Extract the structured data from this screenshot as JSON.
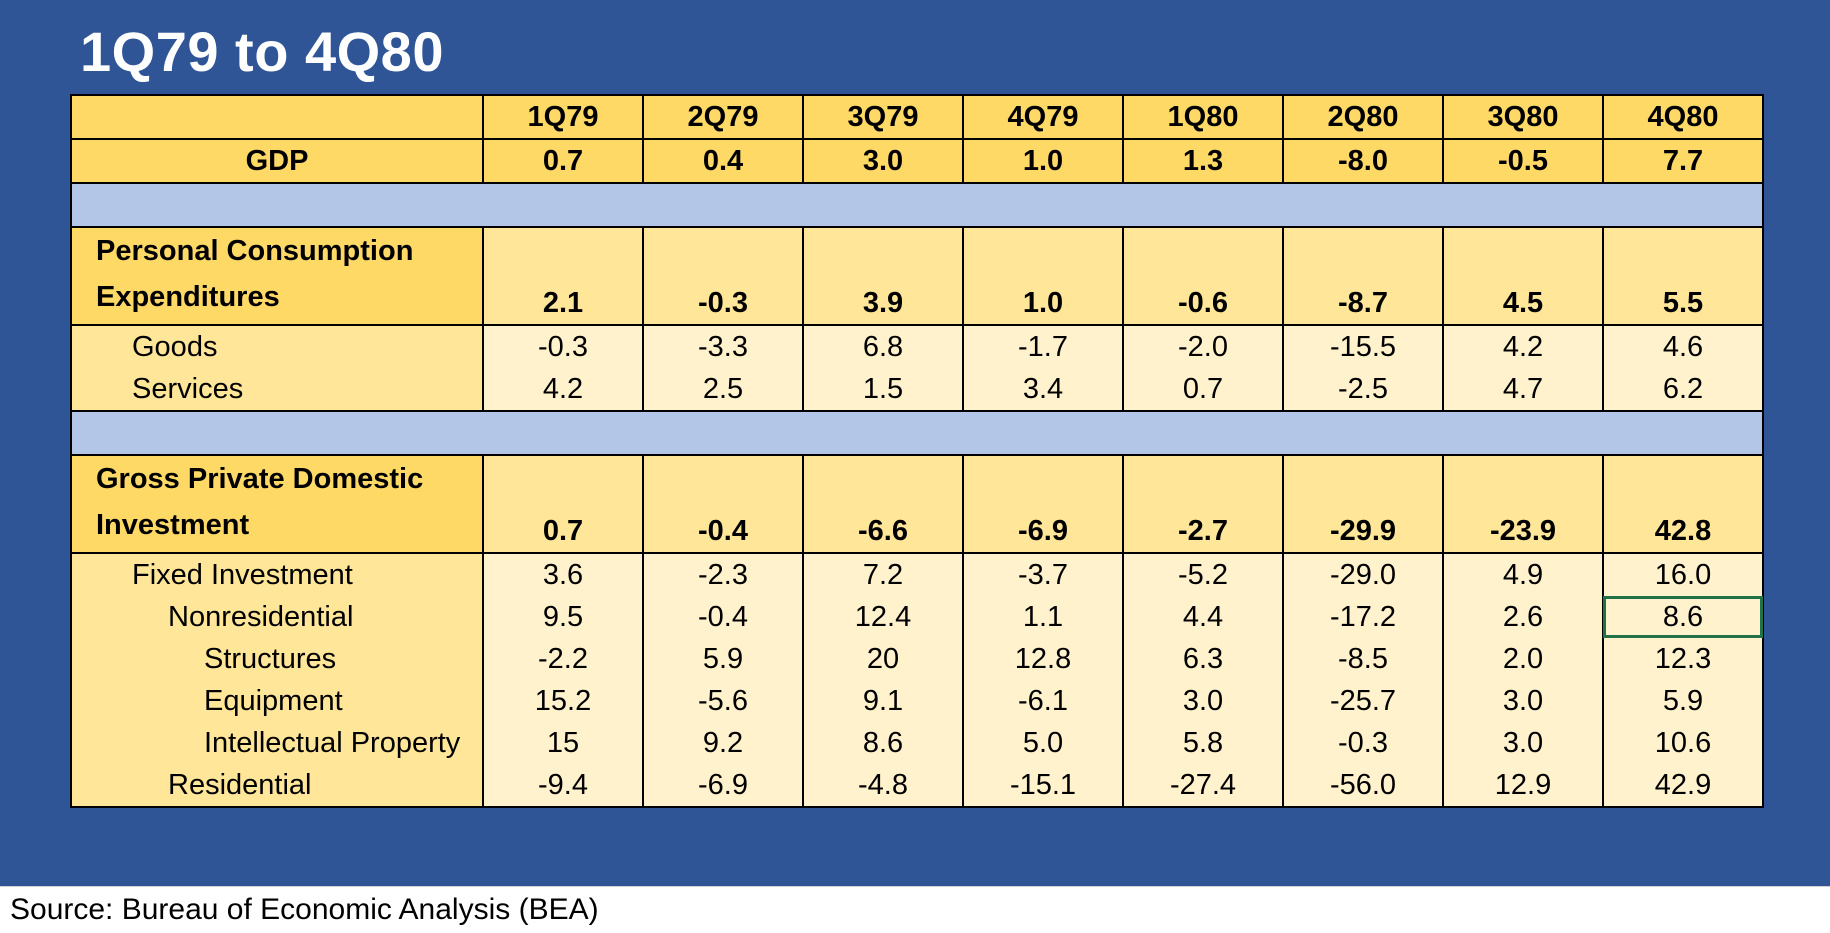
{
  "title": "1Q79 to 4Q80",
  "quarters": [
    "1Q79",
    "2Q79",
    "3Q79",
    "4Q79",
    "1Q80",
    "2Q80",
    "3Q80",
    "4Q80"
  ],
  "gdp": {
    "label": "GDP",
    "values": [
      "0.7",
      "0.4",
      "3.0",
      "1.0",
      "1.3",
      "-8.0",
      "-0.5",
      "7.7"
    ]
  },
  "pce": {
    "label": "Personal Consumption Expenditures",
    "values": [
      "2.1",
      "-0.3",
      "3.9",
      "1.0",
      "-0.6",
      "-8.7",
      "4.5",
      "5.5"
    ],
    "rows": [
      {
        "label": "Goods",
        "indent": 1,
        "values": [
          "-0.3",
          "-3.3",
          "6.8",
          "-1.7",
          "-2.0",
          "-15.5",
          "4.2",
          "4.6"
        ]
      },
      {
        "label": "Services",
        "indent": 1,
        "values": [
          "4.2",
          "2.5",
          "1.5",
          "3.4",
          "0.7",
          "-2.5",
          "4.7",
          "6.2"
        ]
      }
    ]
  },
  "gpdi": {
    "label": "Gross Private Domestic Investment",
    "values": [
      "0.7",
      "-0.4",
      "-6.6",
      "-6.9",
      "-2.7",
      "-29.9",
      "-23.9",
      "42.8"
    ],
    "rows": [
      {
        "label": "Fixed Investment",
        "indent": 1,
        "values": [
          "3.6",
          "-2.3",
          "7.2",
          "-3.7",
          "-5.2",
          "-29.0",
          "4.9",
          "16.0"
        ]
      },
      {
        "label": "Nonresidential",
        "indent": 2,
        "values": [
          "9.5",
          "-0.4",
          "12.4",
          "1.1",
          "4.4",
          "-17.2",
          "2.6",
          "8.6"
        ]
      },
      {
        "label": "Structures",
        "indent": 3,
        "values": [
          "-2.2",
          "5.9",
          "20",
          "12.8",
          "6.3",
          "-8.5",
          "2.0",
          "12.3"
        ]
      },
      {
        "label": "Equipment",
        "indent": 3,
        "values": [
          "15.2",
          "-5.6",
          "9.1",
          "-6.1",
          "3.0",
          "-25.7",
          "3.0",
          "5.9"
        ]
      },
      {
        "label": "Intellectual Property",
        "indent": 3,
        "values": [
          "15",
          "9.2",
          "8.6",
          "5.0",
          "5.8",
          "-0.3",
          "3.0",
          "10.6"
        ]
      },
      {
        "label": "Residential",
        "indent": 2,
        "values": [
          "-9.4",
          "-6.9",
          "-4.8",
          "-15.1",
          "-27.4",
          "-56.0",
          "12.9",
          "42.9"
        ]
      }
    ]
  },
  "selected_cell": {
    "row": "Nonresidential",
    "quarter": "4Q80"
  },
  "source": "Source: Bureau of Economic Analysis (BEA)",
  "colors": {
    "frame": "#2F5597",
    "header": "#FFD966",
    "section": "#FFE699",
    "detail": "#FFF2CC",
    "spacer": "#B4C6E7",
    "selection": "#217346"
  }
}
